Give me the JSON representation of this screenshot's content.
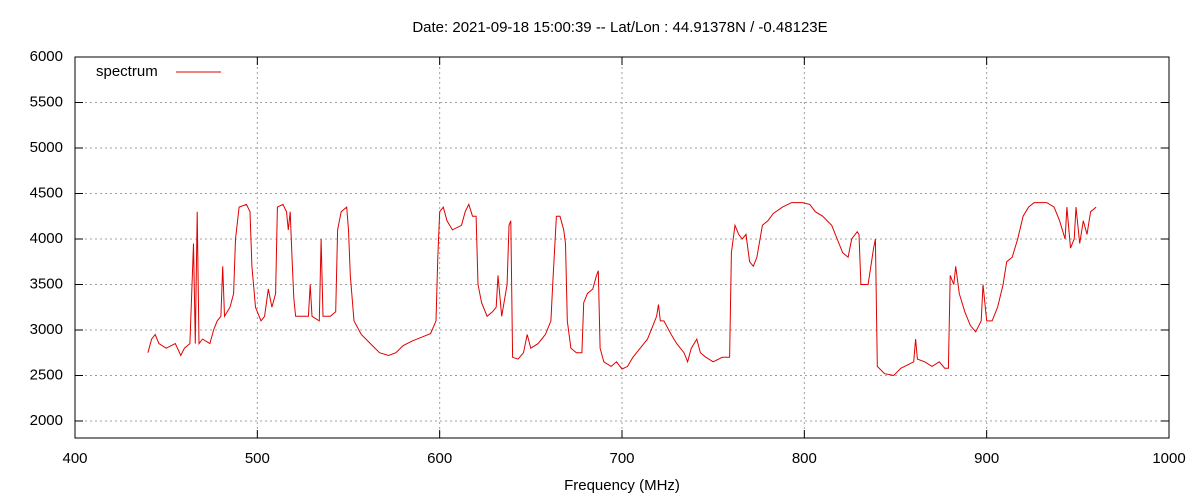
{
  "chart_data": {
    "type": "line",
    "title": "Date: 2021-09-18 15:00:39  --  Lat/Lon : 44.91378N / -0.48123E",
    "x_label": "Frequency (MHz)",
    "xlim": [
      400,
      1000
    ],
    "xticks": [
      400,
      500,
      600,
      700,
      800,
      900,
      1000
    ],
    "ylim": [
      1813,
      6000
    ],
    "yticks": [
      2000,
      2500,
      3000,
      3500,
      4000,
      4500,
      5000,
      5500,
      6000
    ],
    "grid": true,
    "legend": "top-left",
    "x": [
      440,
      442,
      444,
      446,
      450,
      455,
      458,
      460,
      463,
      465,
      466,
      467,
      468,
      470,
      474,
      476,
      478,
      480,
      481,
      482,
      485,
      487,
      488,
      490,
      494,
      496,
      497,
      499,
      502,
      504,
      506,
      508,
      510,
      511,
      514,
      516,
      517,
      518,
      519,
      520,
      521,
      525,
      528,
      529,
      530,
      534,
      535,
      536,
      540,
      543,
      544,
      546,
      549,
      550,
      551,
      553,
      557,
      562,
      567,
      572,
      576,
      580,
      585,
      590,
      595,
      598,
      599,
      600,
      602,
      604,
      607,
      612,
      614,
      616,
      618,
      620,
      621,
      623,
      626,
      629,
      631,
      632,
      634,
      637,
      638,
      639,
      640,
      643,
      646,
      648,
      650,
      654,
      658,
      661,
      662,
      664,
      666,
      668,
      669,
      670,
      672,
      675,
      678,
      679,
      681,
      684,
      686,
      687,
      688,
      690,
      694,
      697,
      700,
      703,
      706,
      710,
      714,
      717,
      719,
      720,
      721,
      723,
      727,
      730,
      734,
      736,
      738,
      741,
      743,
      746,
      750,
      755,
      759,
      760,
      762,
      764,
      766,
      768,
      770,
      772,
      774,
      777,
      780,
      783,
      788,
      793,
      799,
      803,
      806,
      810,
      815,
      818,
      821,
      824,
      826,
      829,
      830,
      831,
      835,
      838,
      839,
      840,
      844,
      849,
      853,
      857,
      860,
      861,
      862,
      866,
      870,
      874,
      877,
      879,
      880,
      882,
      883,
      885,
      888,
      891,
      894,
      897,
      898,
      900,
      903,
      906,
      909,
      911,
      914,
      917,
      920,
      923,
      926,
      933,
      937,
      940,
      943,
      944,
      946,
      948,
      949,
      951,
      953,
      955,
      957,
      960
    ],
    "series": [
      {
        "name": "spectrum",
        "color": "#e00000",
        "values": [
          2750,
          2900,
          2950,
          2850,
          2800,
          2850,
          2720,
          2800,
          2850,
          3950,
          2850,
          4300,
          2850,
          2900,
          2850,
          3000,
          3100,
          3150,
          3700,
          3150,
          3250,
          3400,
          4000,
          4350,
          4380,
          4300,
          3700,
          3250,
          3100,
          3150,
          3450,
          3250,
          3400,
          4350,
          4380,
          4300,
          4100,
          4300,
          3800,
          3350,
          3150,
          3150,
          3150,
          3500,
          3150,
          3100,
          4000,
          3150,
          3150,
          3200,
          4100,
          4300,
          4350,
          4100,
          3600,
          3100,
          2950,
          2850,
          2750,
          2720,
          2750,
          2830,
          2880,
          2920,
          2960,
          3100,
          3800,
          4300,
          4350,
          4200,
          4100,
          4150,
          4300,
          4380,
          4250,
          4250,
          3500,
          3300,
          3150,
          3200,
          3250,
          3600,
          3150,
          3500,
          4150,
          4200,
          2700,
          2680,
          2750,
          2950,
          2800,
          2850,
          2950,
          3100,
          3500,
          4250,
          4250,
          4100,
          3950,
          3100,
          2800,
          2750,
          2750,
          3300,
          3400,
          3450,
          3600,
          3650,
          2800,
          2650,
          2600,
          2650,
          2570,
          2600,
          2700,
          2800,
          2900,
          3050,
          3150,
          3280,
          3100,
          3100,
          2950,
          2850,
          2750,
          2650,
          2800,
          2900,
          2750,
          2700,
          2650,
          2700,
          2700,
          3850,
          4150,
          4050,
          4000,
          4050,
          3750,
          3700,
          3800,
          4150,
          4200,
          4280,
          4350,
          4400,
          4400,
          4380,
          4300,
          4250,
          4150,
          4000,
          3850,
          3800,
          4000,
          4080,
          4050,
          3500,
          3500,
          3900,
          4000,
          2600,
          2520,
          2500,
          2580,
          2620,
          2650,
          2900,
          2680,
          2650,
          2600,
          2650,
          2580,
          2580,
          3600,
          3500,
          3700,
          3400,
          3200,
          3050,
          2980,
          3100,
          3500,
          3100,
          3100,
          3250,
          3500,
          3750,
          3800,
          4000,
          4250,
          4350,
          4400,
          4400,
          4350,
          4200,
          4000,
          4350,
          3900,
          4000,
          4350,
          3950,
          4200,
          4050,
          4300,
          4350
        ]
      }
    ]
  }
}
